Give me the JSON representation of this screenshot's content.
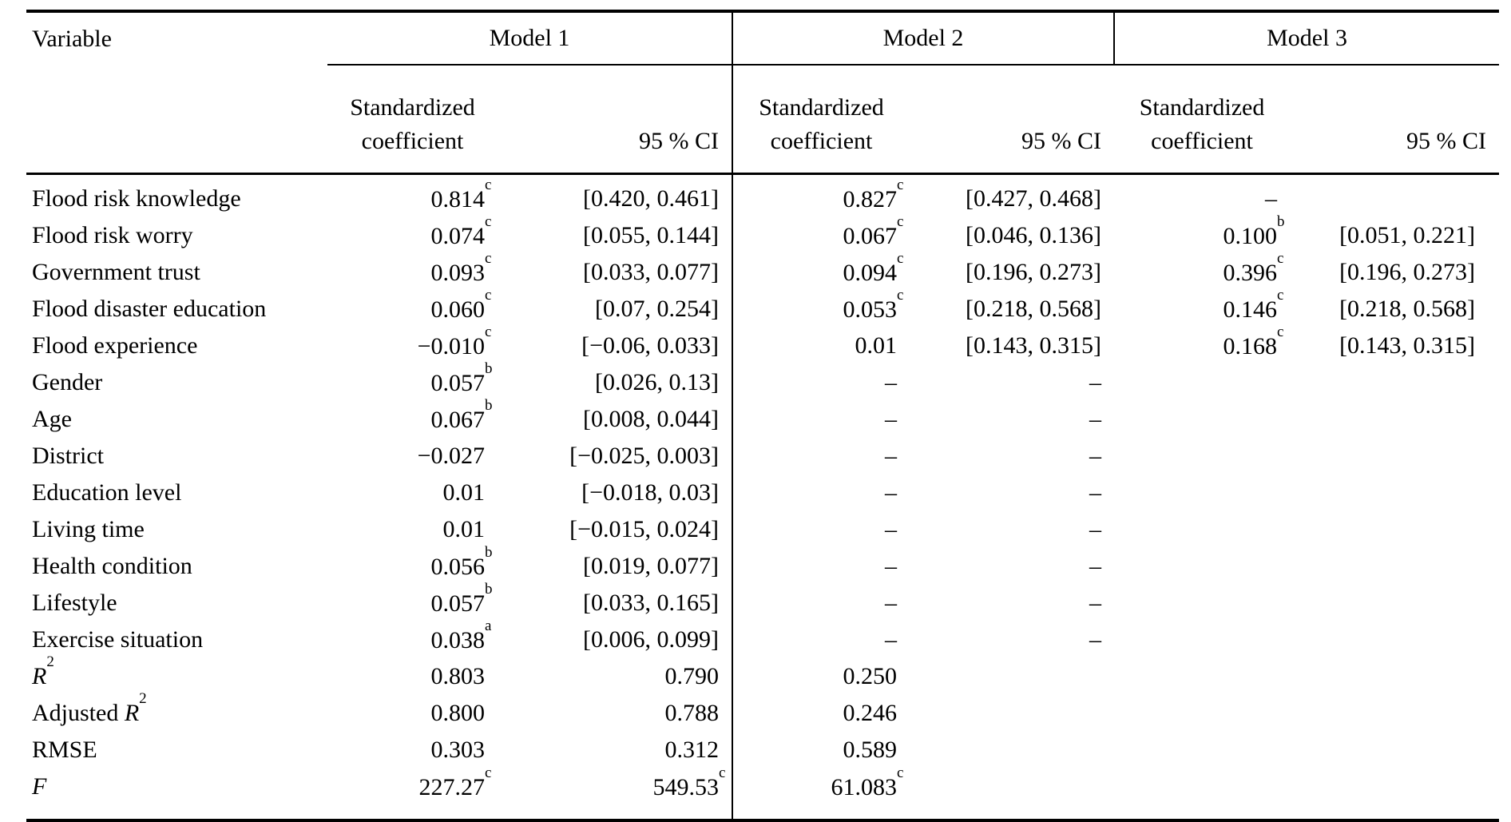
{
  "table": {
    "header": {
      "variable_label": "Variable",
      "models": [
        "Model 1",
        "Model 2",
        "Model 3"
      ],
      "coef_line1": "Standardized",
      "coef_line2": "coefficient",
      "ci_label": "95 % CI"
    },
    "columns": [
      "variable",
      "m1_coefficient",
      "m1_ci",
      "m2_coefficient",
      "m2_ci",
      "m3_coefficient",
      "m3_ci"
    ],
    "missing_marker": "–",
    "rows": [
      {
        "label": "Flood risk knowledge",
        "cells": [
          {
            "v": "0.814",
            "s": "c"
          },
          {
            "v": "[0.420, 0.461]"
          },
          {
            "v": "0.827",
            "s": "c"
          },
          {
            "v": "[0.427, 0.468]"
          },
          {
            "v": "–"
          },
          {
            "v": ""
          }
        ]
      },
      {
        "label": "Flood risk worry",
        "cells": [
          {
            "v": "0.074",
            "s": "c"
          },
          {
            "v": "[0.055, 0.144]"
          },
          {
            "v": "0.067",
            "s": "c"
          },
          {
            "v": "[0.046, 0.136]"
          },
          {
            "v": "0.100",
            "s": "b"
          },
          {
            "v": "[0.051, 0.221]"
          }
        ]
      },
      {
        "label": "Government trust",
        "cells": [
          {
            "v": "0.093",
            "s": "c"
          },
          {
            "v": "[0.033, 0.077]"
          },
          {
            "v": "0.094",
            "s": "c"
          },
          {
            "v": "[0.196, 0.273]"
          },
          {
            "v": "0.396",
            "s": "c"
          },
          {
            "v": "[0.196, 0.273]"
          }
        ]
      },
      {
        "label": "Flood disaster education",
        "cells": [
          {
            "v": "0.060",
            "s": "c"
          },
          {
            "v": "[0.07, 0.254]"
          },
          {
            "v": "0.053",
            "s": "c"
          },
          {
            "v": "[0.218, 0.568]"
          },
          {
            "v": "0.146",
            "s": "c"
          },
          {
            "v": "[0.218, 0.568]"
          }
        ]
      },
      {
        "label": "Flood experience",
        "cells": [
          {
            "v": "−0.010",
            "s": "c"
          },
          {
            "v": "[−0.06, 0.033]"
          },
          {
            "v": "0.01"
          },
          {
            "v": "[0.143, 0.315]"
          },
          {
            "v": "0.168",
            "s": "c"
          },
          {
            "v": "[0.143, 0.315]"
          }
        ]
      },
      {
        "label": "Gender",
        "cells": [
          {
            "v": "0.057",
            "s": "b"
          },
          {
            "v": "[0.026, 0.13]"
          },
          {
            "v": "–"
          },
          {
            "v": "–"
          },
          {
            "v": ""
          },
          {
            "v": ""
          }
        ]
      },
      {
        "label": "Age",
        "cells": [
          {
            "v": "0.067",
            "s": "b"
          },
          {
            "v": "[0.008, 0.044]"
          },
          {
            "v": "–"
          },
          {
            "v": "–"
          },
          {
            "v": ""
          },
          {
            "v": ""
          }
        ]
      },
      {
        "label": "District",
        "cells": [
          {
            "v": "−0.027"
          },
          {
            "v": "[−0.025, 0.003]"
          },
          {
            "v": "–"
          },
          {
            "v": "–"
          },
          {
            "v": ""
          },
          {
            "v": ""
          }
        ]
      },
      {
        "label": "Education level",
        "cells": [
          {
            "v": "0.01"
          },
          {
            "v": "[−0.018, 0.03]"
          },
          {
            "v": "–"
          },
          {
            "v": "–"
          },
          {
            "v": ""
          },
          {
            "v": ""
          }
        ]
      },
      {
        "label": "Living time",
        "cells": [
          {
            "v": "0.01"
          },
          {
            "v": "[−0.015, 0.024]"
          },
          {
            "v": "–"
          },
          {
            "v": "–"
          },
          {
            "v": ""
          },
          {
            "v": ""
          }
        ]
      },
      {
        "label": "Health condition",
        "cells": [
          {
            "v": "0.056",
            "s": "b"
          },
          {
            "v": "[0.019, 0.077]"
          },
          {
            "v": "–"
          },
          {
            "v": "–"
          },
          {
            "v": ""
          },
          {
            "v": ""
          }
        ]
      },
      {
        "label": "Lifestyle",
        "cells": [
          {
            "v": "0.057",
            "s": "b"
          },
          {
            "v": "[0.033, 0.165]"
          },
          {
            "v": "–"
          },
          {
            "v": "–"
          },
          {
            "v": ""
          },
          {
            "v": ""
          }
        ]
      },
      {
        "label": "Exercise situation",
        "cells": [
          {
            "v": "0.038",
            "s": "a"
          },
          {
            "v": "[0.006, 0.099]"
          },
          {
            "v": "–"
          },
          {
            "v": "–"
          },
          {
            "v": ""
          },
          {
            "v": ""
          }
        ]
      },
      {
        "math": "R",
        "msup": "2",
        "cells": [
          {
            "v": "0.803"
          },
          {
            "v": "0.790"
          },
          {
            "v": "0.250"
          },
          {
            "v": ""
          },
          {
            "v": ""
          },
          {
            "v": ""
          }
        ]
      },
      {
        "label": "Adjusted ",
        "math": "R",
        "msup": "2",
        "cells": [
          {
            "v": "0.800"
          },
          {
            "v": "0.788"
          },
          {
            "v": "0.246"
          },
          {
            "v": ""
          },
          {
            "v": ""
          },
          {
            "v": ""
          }
        ]
      },
      {
        "label": "RMSE",
        "cells": [
          {
            "v": "0.303"
          },
          {
            "v": "0.312"
          },
          {
            "v": "0.589"
          },
          {
            "v": ""
          },
          {
            "v": ""
          },
          {
            "v": ""
          }
        ]
      },
      {
        "math": "F",
        "cells": [
          {
            "v": "227.27",
            "s": "c"
          },
          {
            "v": "549.53",
            "s": "c"
          },
          {
            "v": "61.083",
            "s": "c"
          },
          {
            "v": ""
          },
          {
            "v": ""
          },
          {
            "v": ""
          }
        ]
      }
    ]
  }
}
